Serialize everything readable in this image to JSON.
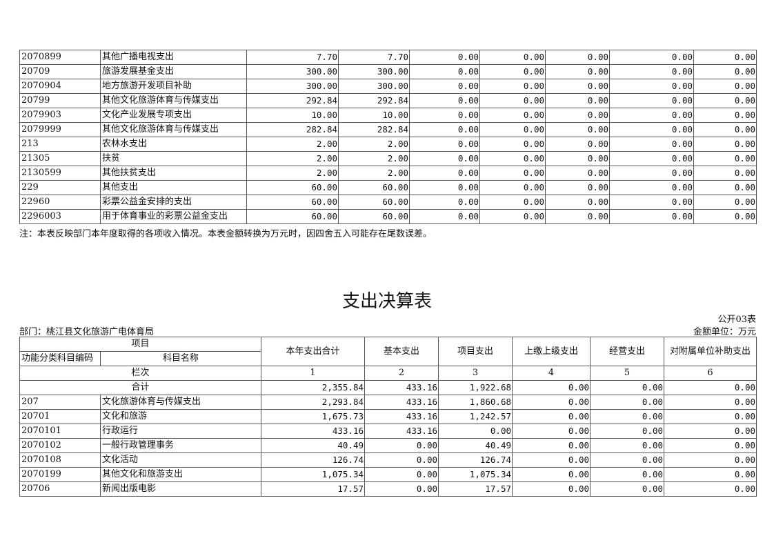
{
  "income_table": {
    "rows": [
      [
        "2070899",
        "其他广播电视支出",
        "7.70",
        "7.70",
        "0.00",
        "0.00",
        "0.00",
        "0.00",
        "0.00"
      ],
      [
        "20709",
        "旅游发展基金支出",
        "300.00",
        "300.00",
        "0.00",
        "0.00",
        "0.00",
        "0.00",
        "0.00"
      ],
      [
        "2070904",
        "地方旅游开发项目补助",
        "300.00",
        "300.00",
        "0.00",
        "0.00",
        "0.00",
        "0.00",
        "0.00"
      ],
      [
        "20799",
        "其他文化旅游体育与传媒支出",
        "292.84",
        "292.84",
        "0.00",
        "0.00",
        "0.00",
        "0.00",
        "0.00"
      ],
      [
        "2079903",
        "文化产业发展专项支出",
        "10.00",
        "10.00",
        "0.00",
        "0.00",
        "0.00",
        "0.00",
        "0.00"
      ],
      [
        "2079999",
        "其他文化旅游体育与传媒支出",
        "282.84",
        "282.84",
        "0.00",
        "0.00",
        "0.00",
        "0.00",
        "0.00"
      ],
      [
        "213",
        "农林水支出",
        "2.00",
        "2.00",
        "0.00",
        "0.00",
        "0.00",
        "0.00",
        "0.00"
      ],
      [
        "21305",
        "扶贫",
        "2.00",
        "2.00",
        "0.00",
        "0.00",
        "0.00",
        "0.00",
        "0.00"
      ],
      [
        "2130599",
        "其他扶贫支出",
        "2.00",
        "2.00",
        "0.00",
        "0.00",
        "0.00",
        "0.00",
        "0.00"
      ],
      [
        "229",
        "其他支出",
        "60.00",
        "60.00",
        "0.00",
        "0.00",
        "0.00",
        "0.00",
        "0.00"
      ],
      [
        "22960",
        "彩票公益金安排的支出",
        "60.00",
        "60.00",
        "0.00",
        "0.00",
        "0.00",
        "0.00",
        "0.00"
      ],
      [
        "2296003",
        "用于体育事业的彩票公益金支出",
        "60.00",
        "60.00",
        "0.00",
        "0.00",
        "0.00",
        "0.00",
        "0.00"
      ]
    ],
    "note": "注：本表反映部门本年度取得的各项收入情况。本表金额转换为万元时，因四舍五入可能存在尾数误差。"
  },
  "expense_table": {
    "title": "支出决算表",
    "form_no": "公开03表",
    "department": "部门：桃江县文化旅游广电体育局",
    "unit": "金额单位：万元",
    "header": {
      "item": "项目",
      "code": "功能分类科目编码",
      "name": "科目名称",
      "columns": [
        "本年支出合计",
        "基本支出",
        "项目支出",
        "上缴上级支出",
        "经营支出",
        "对附属单位补助支出"
      ],
      "column_label": "栏次",
      "column_numbers": [
        "1",
        "2",
        "3",
        "4",
        "5",
        "6"
      ]
    },
    "total": {
      "label": "合计",
      "values": [
        "2,355.84",
        "433.16",
        "1,922.68",
        "0.00",
        "0.00",
        "0.00"
      ]
    },
    "rows": [
      [
        "207",
        "文化旅游体育与传媒支出",
        "2,293.84",
        "433.16",
        "1,860.68",
        "0.00",
        "0.00",
        "0.00"
      ],
      [
        "20701",
        "文化和旅游",
        "1,675.73",
        "433.16",
        "1,242.57",
        "0.00",
        "0.00",
        "0.00"
      ],
      [
        "2070101",
        "行政运行",
        "433.16",
        "433.16",
        "0.00",
        "0.00",
        "0.00",
        "0.00"
      ],
      [
        "2070102",
        "一般行政管理事务",
        "40.49",
        "0.00",
        "40.49",
        "0.00",
        "0.00",
        "0.00"
      ],
      [
        "2070108",
        "文化活动",
        "126.74",
        "0.00",
        "126.74",
        "0.00",
        "0.00",
        "0.00"
      ],
      [
        "2070199",
        "其他文化和旅游支出",
        "1,075.34",
        "0.00",
        "1,075.34",
        "0.00",
        "0.00",
        "0.00"
      ],
      [
        "20706",
        "新闻出版电影",
        "17.57",
        "0.00",
        "17.57",
        "0.00",
        "0.00",
        "0.00"
      ]
    ]
  }
}
